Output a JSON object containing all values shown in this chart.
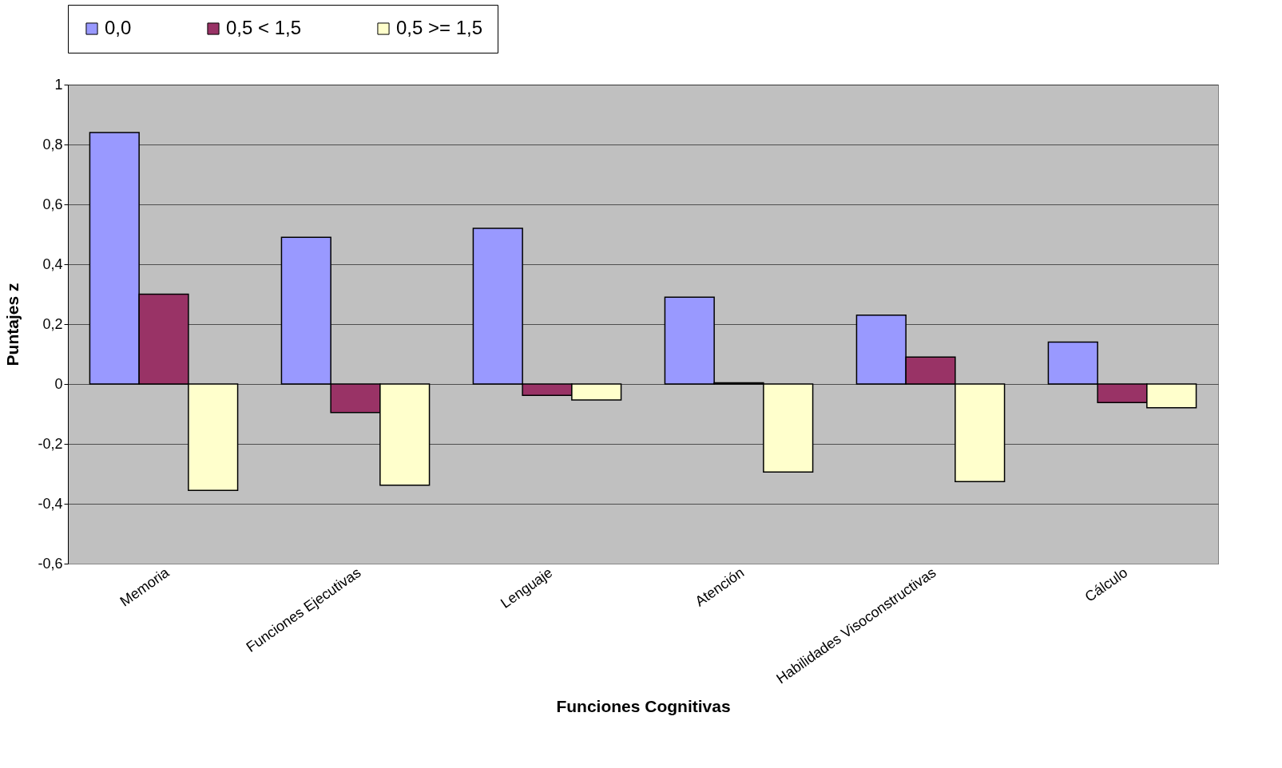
{
  "chart_data": {
    "type": "bar",
    "xlabel": "Funciones Cognitivas",
    "ylabel": "Puntajes z",
    "categories": [
      "Memoria",
      "Funciones Ejecutivas",
      "Lenguaje",
      "Atención",
      "Habilidades Visoconstructivas",
      "Cálculo"
    ],
    "series": [
      {
        "name": "0,0",
        "color": "#9999ff",
        "values": [
          0.84,
          0.49,
          0.52,
          0.29,
          0.23,
          0.14
        ]
      },
      {
        "name": "0,5 < 1,5",
        "color": "#993366",
        "values": [
          0.3,
          -0.095,
          -0.038,
          0.004,
          0.09,
          -0.062
        ]
      },
      {
        "name": "0,5 >= 1,5",
        "color": "#ffffcc",
        "values": [
          -0.355,
          -0.338,
          -0.053,
          -0.294,
          -0.326,
          -0.079
        ]
      }
    ],
    "ylim": [
      -0.6,
      1
    ],
    "yticks": [
      {
        "value": -0.6,
        "label": "-0,6"
      },
      {
        "value": -0.4,
        "label": "-0,4"
      },
      {
        "value": -0.2,
        "label": "-0,2"
      },
      0,
      {
        "value": 0.2,
        "label": "0,2"
      },
      {
        "value": 0.4,
        "label": "0,4"
      },
      {
        "value": 0.6,
        "label": "0,6"
      },
      {
        "value": 0.8,
        "label": "0,8"
      },
      1
    ],
    "grid": "y",
    "legend": "top"
  }
}
